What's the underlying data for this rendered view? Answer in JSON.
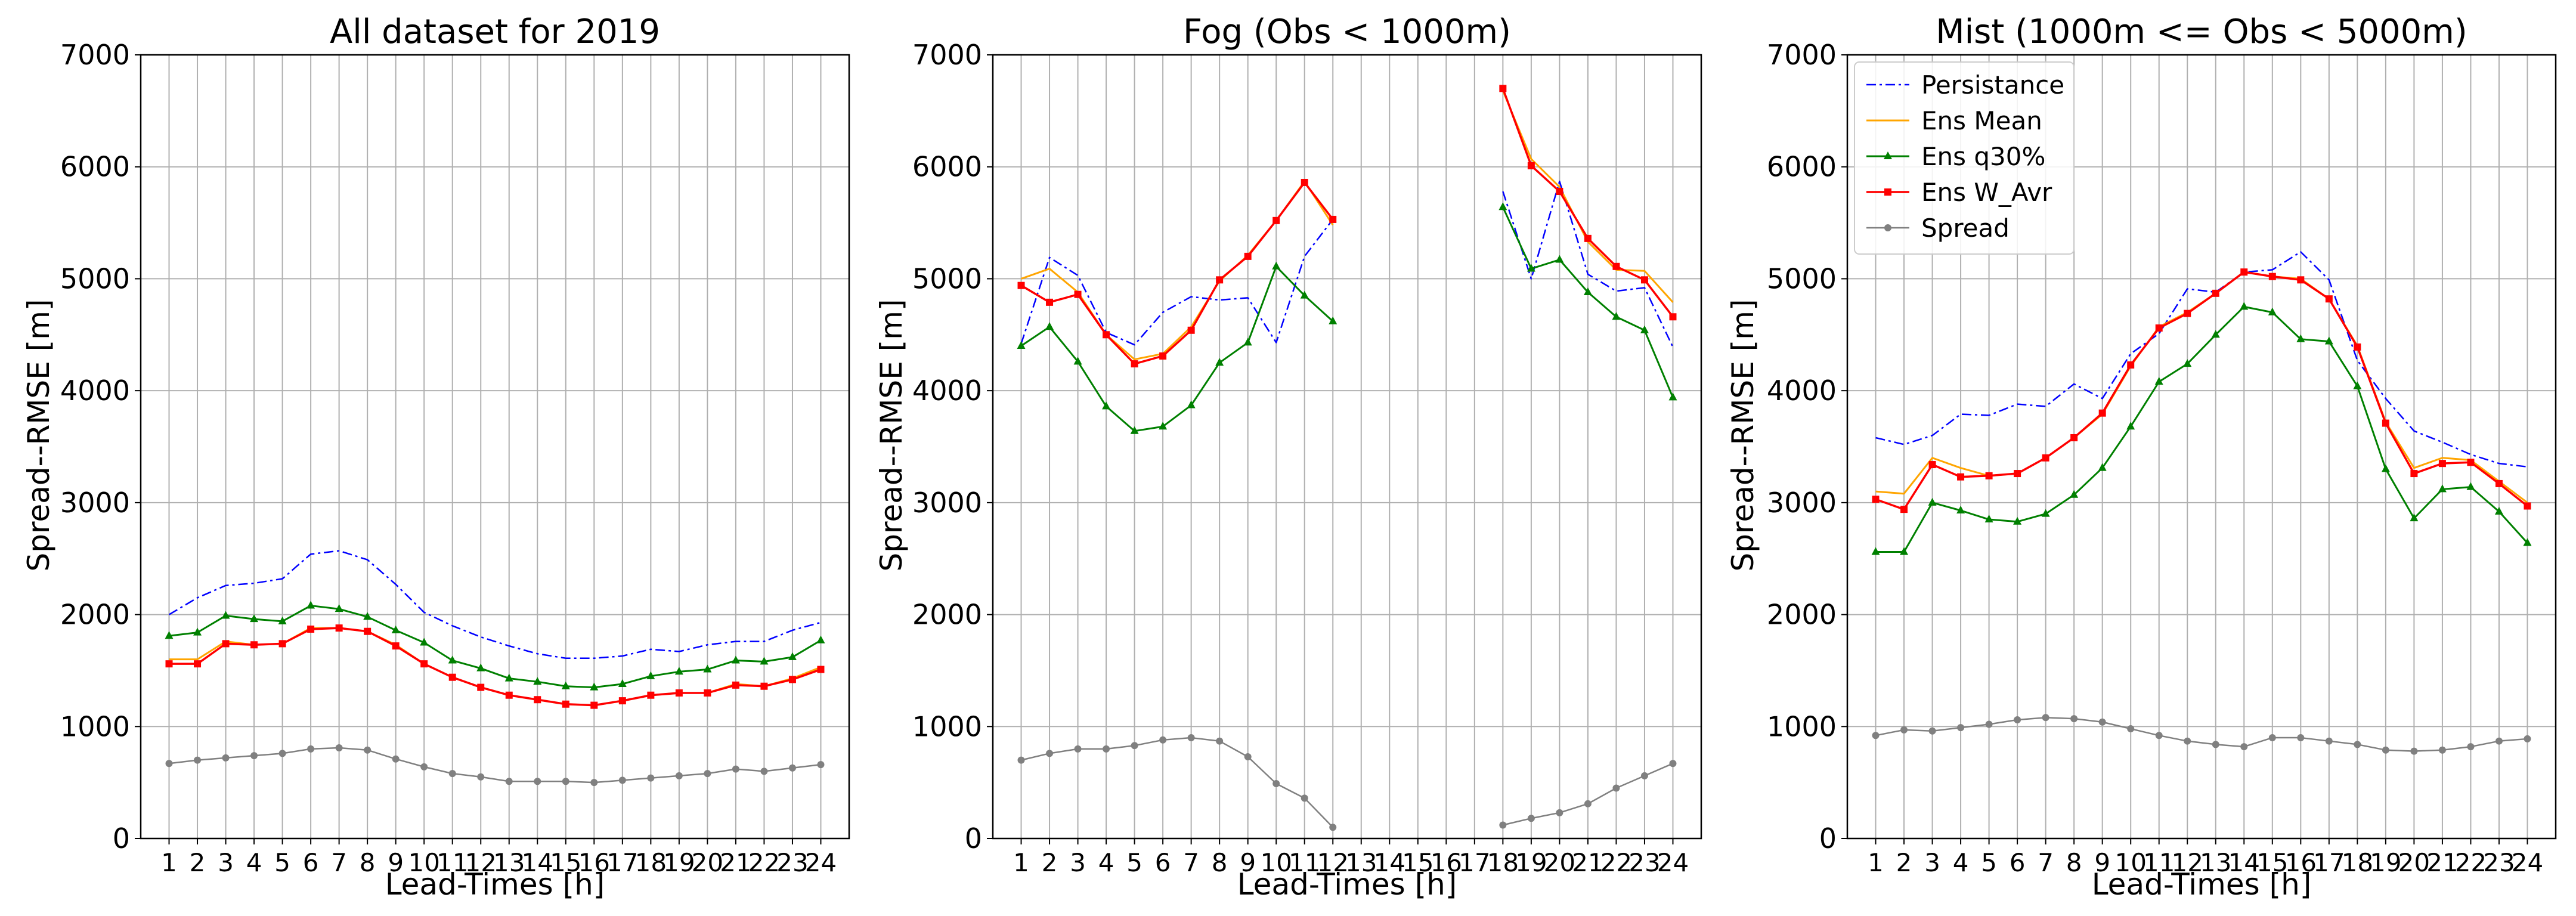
{
  "chart_data": [
    {
      "type": "line",
      "title": "All dataset for 2019",
      "xlabel": "Lead-Times [h]",
      "ylabel": "Spread--RMSE [m]",
      "ylim": [
        0,
        7000
      ],
      "yticks": [
        0,
        1000,
        2000,
        3000,
        4000,
        5000,
        6000,
        7000
      ],
      "ytick_labels": [
        "0",
        "1000",
        "2000",
        "3000",
        "4000",
        "5000",
        "6000",
        "7000"
      ],
      "xlim": [
        0,
        25
      ],
      "categories": [
        "1",
        "2",
        "3",
        "4",
        "5",
        "6",
        "7",
        "8",
        "9",
        "10",
        "11",
        "12",
        "13",
        "14",
        "15",
        "16",
        "17",
        "18",
        "19",
        "20",
        "21",
        "22",
        "23",
        "24"
      ],
      "x": [
        1,
        2,
        3,
        4,
        5,
        6,
        7,
        8,
        9,
        10,
        11,
        12,
        13,
        14,
        15,
        16,
        17,
        18,
        19,
        20,
        21,
        22,
        23,
        24
      ],
      "grid": true,
      "series": [
        {
          "name": "Persistance",
          "values": [
            2000,
            2150,
            2260,
            2280,
            2320,
            2540,
            2570,
            2490,
            2270,
            2020,
            1900,
            1800,
            1720,
            1650,
            1610,
            1610,
            1630,
            1690,
            1670,
            1730,
            1760,
            1760,
            1860,
            1930
          ]
        },
        {
          "name": "Ens Mean",
          "values": [
            1600,
            1600,
            1760,
            1730,
            1740,
            1880,
            1880,
            1850,
            1730,
            1560,
            1440,
            1350,
            1280,
            1240,
            1200,
            1190,
            1230,
            1280,
            1300,
            1300,
            1380,
            1360,
            1430,
            1530
          ]
        },
        {
          "name": "Ens q30%",
          "values": [
            1810,
            1840,
            1990,
            1960,
            1940,
            2080,
            2050,
            1980,
            1860,
            1750,
            1590,
            1520,
            1430,
            1400,
            1360,
            1350,
            1380,
            1450,
            1490,
            1510,
            1590,
            1580,
            1620,
            1770
          ]
        },
        {
          "name": "Ens W_Avr",
          "values": [
            1560,
            1560,
            1740,
            1730,
            1740,
            1870,
            1880,
            1850,
            1720,
            1560,
            1440,
            1350,
            1280,
            1240,
            1200,
            1190,
            1230,
            1280,
            1300,
            1300,
            1370,
            1360,
            1420,
            1510
          ]
        },
        {
          "name": "Spread",
          "values": [
            670,
            700,
            720,
            740,
            760,
            800,
            810,
            790,
            710,
            640,
            580,
            550,
            510,
            510,
            510,
            500,
            520,
            540,
            560,
            580,
            620,
            600,
            630,
            660
          ]
        }
      ]
    },
    {
      "type": "line",
      "title": "Fog (Obs < 1000m)",
      "xlabel": "Lead-Times [h]",
      "ylabel": "Spread--RMSE [m]",
      "ylim": [
        0,
        7000
      ],
      "yticks": [
        0,
        1000,
        2000,
        3000,
        4000,
        5000,
        6000,
        7000
      ],
      "ytick_labels": [
        "0",
        "1000",
        "2000",
        "3000",
        "4000",
        "5000",
        "6000",
        "7000"
      ],
      "xlim": [
        0,
        25
      ],
      "categories": [
        "1",
        "2",
        "3",
        "4",
        "5",
        "6",
        "7",
        "8",
        "9",
        "10",
        "11",
        "12",
        "13",
        "14",
        "15",
        "16",
        "17",
        "18",
        "19",
        "20",
        "21",
        "22",
        "23",
        "24"
      ],
      "x": [
        1,
        2,
        3,
        4,
        5,
        6,
        7,
        8,
        9,
        10,
        11,
        12,
        13,
        14,
        15,
        16,
        17,
        18,
        19,
        20,
        21,
        22,
        23,
        24
      ],
      "grid": true,
      "series": [
        {
          "name": "Persistance",
          "values": [
            4420,
            5190,
            5030,
            4520,
            4410,
            4700,
            4840,
            4810,
            4830,
            4430,
            5200,
            5530,
            null,
            null,
            null,
            null,
            null,
            5780,
            5000,
            5870,
            5040,
            4890,
            4920,
            4390
          ]
        },
        {
          "name": "Ens Mean",
          "values": [
            5000,
            5090,
            4880,
            4500,
            4280,
            4330,
            4570,
            4980,
            5210,
            5520,
            5870,
            5480,
            null,
            null,
            null,
            null,
            null,
            6680,
            6070,
            5820,
            5330,
            5080,
            5070,
            4790
          ]
        },
        {
          "name": "Ens q30%",
          "values": [
            4400,
            4570,
            4260,
            3860,
            3640,
            3680,
            3870,
            4250,
            4430,
            5110,
            4850,
            4620,
            null,
            null,
            null,
            null,
            null,
            5640,
            5090,
            5170,
            4880,
            4660,
            4540,
            3940
          ]
        },
        {
          "name": "Ens W_Avr",
          "values": [
            4940,
            4790,
            4860,
            4500,
            4240,
            4310,
            4540,
            4990,
            5200,
            5520,
            5860,
            5530,
            null,
            null,
            null,
            null,
            null,
            6700,
            6010,
            5780,
            5360,
            5110,
            4990,
            4660
          ]
        },
        {
          "name": "Spread",
          "values": [
            700,
            760,
            800,
            800,
            830,
            880,
            900,
            870,
            730,
            490,
            360,
            100,
            null,
            null,
            null,
            null,
            null,
            120,
            180,
            230,
            310,
            450,
            560,
            670
          ]
        }
      ]
    },
    {
      "type": "line",
      "title": "Mist (1000m <= Obs < 5000m)",
      "xlabel": "Lead-Times [h]",
      "ylabel": "Spread--RMSE [m]",
      "ylim": [
        0,
        7000
      ],
      "yticks": [
        0,
        1000,
        2000,
        3000,
        4000,
        5000,
        6000,
        7000
      ],
      "ytick_labels": [
        "0",
        "1000",
        "2000",
        "3000",
        "4000",
        "5000",
        "6000",
        "7000"
      ],
      "xlim": [
        0,
        25
      ],
      "categories": [
        "1",
        "2",
        "3",
        "4",
        "5",
        "6",
        "7",
        "8",
        "9",
        "10",
        "11",
        "12",
        "13",
        "14",
        "15",
        "16",
        "17",
        "18",
        "19",
        "20",
        "21",
        "22",
        "23",
        "24"
      ],
      "x": [
        1,
        2,
        3,
        4,
        5,
        6,
        7,
        8,
        9,
        10,
        11,
        12,
        13,
        14,
        15,
        16,
        17,
        18,
        19,
        20,
        21,
        22,
        23,
        24
      ],
      "grid": true,
      "legend": {
        "placement": "top-left"
      },
      "series": [
        {
          "name": "Persistance",
          "values": [
            3580,
            3520,
            3600,
            3790,
            3780,
            3880,
            3860,
            4060,
            3930,
            4330,
            4510,
            4910,
            4880,
            5060,
            5080,
            5240,
            4990,
            4270,
            3930,
            3640,
            3540,
            3430,
            3350,
            3320
          ]
        },
        {
          "name": "Ens Mean",
          "values": [
            3100,
            3080,
            3400,
            3310,
            3240,
            3260,
            3400,
            3580,
            3790,
            4220,
            4570,
            4700,
            4870,
            5060,
            5020,
            5000,
            4820,
            4400,
            3720,
            3310,
            3400,
            3380,
            3190,
            3000
          ]
        },
        {
          "name": "Ens q30%",
          "values": [
            2560,
            2560,
            3000,
            2930,
            2850,
            2830,
            2900,
            3070,
            3310,
            3680,
            4080,
            4240,
            4500,
            4750,
            4700,
            4460,
            4440,
            4040,
            3300,
            2860,
            3120,
            3140,
            2920,
            2640
          ]
        },
        {
          "name": "Ens W_Avr",
          "values": [
            3030,
            2940,
            3340,
            3230,
            3240,
            3260,
            3400,
            3580,
            3800,
            4230,
            4560,
            4690,
            4870,
            5060,
            5020,
            4990,
            4820,
            4390,
            3710,
            3260,
            3350,
            3360,
            3170,
            2970
          ]
        },
        {
          "name": "Spread",
          "values": [
            920,
            970,
            960,
            990,
            1020,
            1060,
            1080,
            1070,
            1040,
            980,
            920,
            870,
            840,
            820,
            900,
            900,
            870,
            840,
            790,
            780,
            790,
            820,
            870,
            890
          ]
        }
      ]
    }
  ],
  "legend_items": [
    "Persistance",
    "Ens Mean",
    "Ens q30%",
    "Ens W_Avr",
    "Spread"
  ],
  "series_colors": {
    "Persistance": "#0000ff",
    "Ens Mean": "#ffa500",
    "Ens q30%": "#008000",
    "Ens W_Avr": "#ff0000",
    "Spread": "#808080"
  }
}
